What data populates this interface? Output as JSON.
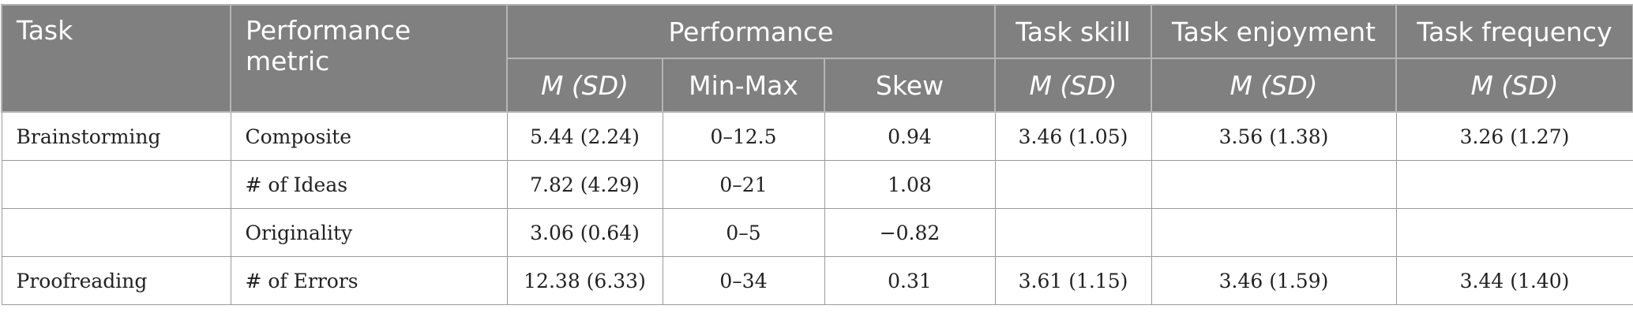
{
  "header": {
    "task": "Task",
    "performance_metric": "Performance metric",
    "performance": "Performance",
    "task_skill": "Task skill",
    "task_enjoyment": "Task enjoyment",
    "task_frequency": "Task frequency",
    "sub": {
      "m_sd_1": "M (SD)",
      "min_max": "Min-Max",
      "skew": "Skew",
      "m_sd_2": "M (SD)",
      "m_sd_3": "M (SD)",
      "m_sd_4": "M (SD)"
    }
  },
  "rows": [
    {
      "task": "Brainstorming",
      "metric": "Composite",
      "m_sd": "5.44 (2.24)",
      "min_max": "0–12.5",
      "skew": "0.94",
      "skill": "3.46 (1.05)",
      "enjoyment": "3.56 (1.38)",
      "frequency": "3.26 (1.27)"
    },
    {
      "task": "",
      "metric": "# of Ideas",
      "m_sd": "7.82 (4.29)",
      "min_max": "0–21",
      "skew": "1.08",
      "skill": "",
      "enjoyment": "",
      "frequency": ""
    },
    {
      "task": "",
      "metric": "Originality",
      "m_sd": "3.06 (0.64)",
      "min_max": "0–5",
      "skew": "−0.82",
      "skill": "",
      "enjoyment": "",
      "frequency": ""
    },
    {
      "task": "Proofreading",
      "metric": "# of Errors",
      "m_sd": "12.38 (6.33)",
      "min_max": "0–34",
      "skew": "0.31",
      "skill": "3.61 (1.15)",
      "enjoyment": "3.46 (1.59)",
      "frequency": "3.44 (1.40)"
    }
  ]
}
